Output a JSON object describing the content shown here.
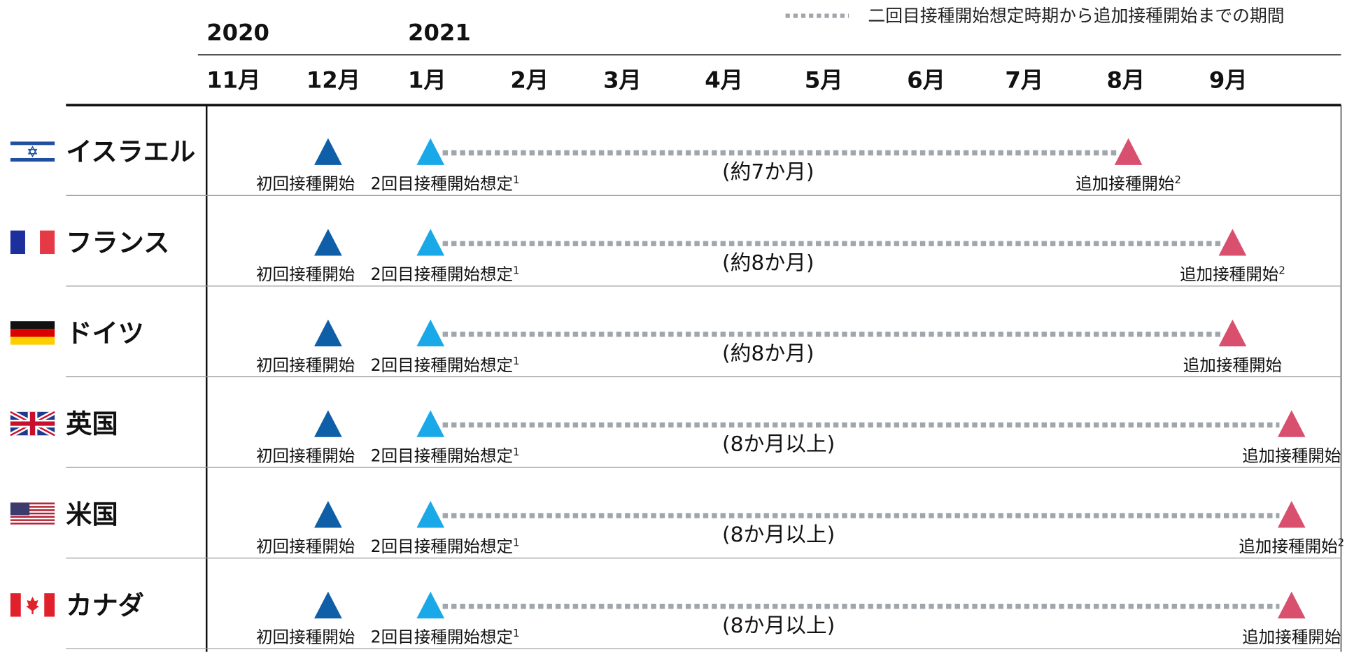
{
  "legend": "二回目接種開始想定時期から追加接種開始までの期間",
  "years": [
    "2020",
    "2021"
  ],
  "months": [
    "11月",
    "12月",
    "1月",
    "2月",
    "3月",
    "4月",
    "5月",
    "6月",
    "7月",
    "8月",
    "9月"
  ],
  "rows": [
    {
      "country": "イスラエル",
      "first": "初回接種開始",
      "second": "2回目接種開始想定",
      "second_note": "1",
      "duration": "(約7か月)",
      "additional": "追加接種開始",
      "additional_note": "2"
    },
    {
      "country": "フランス",
      "first": "初回接種開始",
      "second": "2回目接種開始想定",
      "second_note": "1",
      "duration": "(約8か月)",
      "additional": "追加接種開始",
      "additional_note": "2"
    },
    {
      "country": "ドイツ",
      "first": "初回接種開始",
      "second": "2回目接種開始想定",
      "second_note": "1",
      "duration": "(約8か月)",
      "additional": "追加接種開始"
    },
    {
      "country": "英国",
      "first": "初回接種開始",
      "second": "2回目接種開始想定",
      "second_note": "1",
      "duration": "(8か月以上)",
      "additional": "追加接種開始"
    },
    {
      "country": "米国",
      "first": "初回接種開始",
      "second": "2回目接種開始想定",
      "second_note": "1",
      "duration": "(8か月以上)",
      "additional": "追加接種開始",
      "additional_note": "2"
    },
    {
      "country": "カナダ",
      "first": "初回接種開始",
      "second": "2回目接種開始想定",
      "second_note": "1",
      "duration": "(8か月以上)",
      "additional": "追加接種開始"
    }
  ]
}
